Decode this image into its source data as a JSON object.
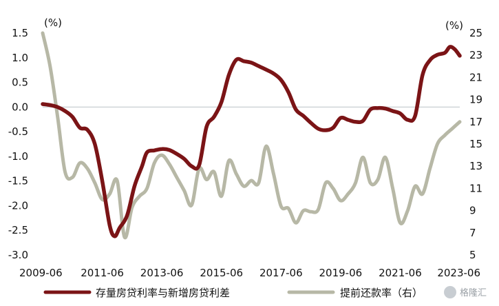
{
  "chart_data": {
    "type": "line",
    "title": "",
    "x_tick_labels": [
      "2009-06",
      "2011-06",
      "2013-06",
      "2015-06",
      "2017-06",
      "2019-06",
      "2021-06",
      "2023-06"
    ],
    "x_range": [
      "2009-06",
      "2023-06"
    ],
    "y_left": {
      "unit_label": "(%)",
      "range": [
        -3.0,
        1.5
      ],
      "tick_labels": [
        "1.5",
        "1.0",
        "0.5",
        "0.0",
        "-0.5",
        "-1.0",
        "-1.5",
        "-2.0",
        "-2.5",
        "-3.0"
      ],
      "ticks": [
        1.5,
        1.0,
        0.5,
        0.0,
        -0.5,
        -1.0,
        -1.5,
        -2.0,
        -2.5,
        -3.0
      ]
    },
    "y_right": {
      "unit_label": "(%)",
      "range": [
        5,
        25
      ],
      "tick_labels": [
        "25",
        "23",
        "21",
        "19",
        "17",
        "15",
        "13",
        "11",
        "9",
        "7",
        "5"
      ],
      "ticks": [
        25,
        23,
        21,
        19,
        17,
        15,
        13,
        11,
        9,
        7,
        5
      ]
    },
    "zero_line": true,
    "grid": false,
    "legend_position": "bottom",
    "series": [
      {
        "name": "存量房贷利率与新增房贷利差",
        "axis": "left",
        "color": "#7b1416",
        "points": [
          [
            "2009-06",
            0.06
          ],
          [
            "2009-09",
            0.04
          ],
          [
            "2009-12",
            0.0
          ],
          [
            "2010-03",
            -0.08
          ],
          [
            "2010-06",
            -0.2
          ],
          [
            "2010-09",
            -0.42
          ],
          [
            "2010-12",
            -0.46
          ],
          [
            "2011-03",
            -0.75
          ],
          [
            "2011-06",
            -1.5
          ],
          [
            "2011-09",
            -2.4
          ],
          [
            "2011-11",
            -2.62
          ],
          [
            "2012-01",
            -2.45
          ],
          [
            "2012-04",
            -2.2
          ],
          [
            "2012-07",
            -1.6
          ],
          [
            "2012-10",
            -1.2
          ],
          [
            "2012-12",
            -0.92
          ],
          [
            "2013-03",
            -0.88
          ],
          [
            "2013-06",
            -0.85
          ],
          [
            "2013-09",
            -0.87
          ],
          [
            "2013-12",
            -0.95
          ],
          [
            "2014-03",
            -1.05
          ],
          [
            "2014-06",
            -1.2
          ],
          [
            "2014-09",
            -1.18
          ],
          [
            "2014-12",
            -0.4
          ],
          [
            "2015-03",
            -0.2
          ],
          [
            "2015-06",
            0.1
          ],
          [
            "2015-09",
            0.65
          ],
          [
            "2015-12",
            0.96
          ],
          [
            "2016-03",
            0.93
          ],
          [
            "2016-06",
            0.9
          ],
          [
            "2016-09",
            0.83
          ],
          [
            "2016-12",
            0.76
          ],
          [
            "2017-03",
            0.68
          ],
          [
            "2017-06",
            0.55
          ],
          [
            "2017-09",
            0.3
          ],
          [
            "2017-12",
            -0.05
          ],
          [
            "2018-03",
            -0.18
          ],
          [
            "2018-06",
            -0.32
          ],
          [
            "2018-09",
            -0.44
          ],
          [
            "2018-12",
            -0.47
          ],
          [
            "2019-03",
            -0.42
          ],
          [
            "2019-06",
            -0.22
          ],
          [
            "2019-09",
            -0.26
          ],
          [
            "2019-12",
            -0.3
          ],
          [
            "2020-03",
            -0.28
          ],
          [
            "2020-06",
            -0.05
          ],
          [
            "2020-09",
            -0.02
          ],
          [
            "2020-12",
            -0.03
          ],
          [
            "2021-03",
            -0.08
          ],
          [
            "2021-06",
            -0.13
          ],
          [
            "2021-09",
            -0.26
          ],
          [
            "2021-12",
            -0.18
          ],
          [
            "2022-03",
            0.65
          ],
          [
            "2022-06",
            0.95
          ],
          [
            "2022-09",
            1.06
          ],
          [
            "2022-12",
            1.1
          ],
          [
            "2023-02",
            1.22
          ],
          [
            "2023-04",
            1.17
          ],
          [
            "2023-06",
            1.04
          ]
        ]
      },
      {
        "name": "提前还款率（右）",
        "axis": "right",
        "color": "#b7b8a6",
        "points": [
          [
            "2009-06",
            25.0
          ],
          [
            "2009-09",
            22.0
          ],
          [
            "2009-12",
            17.5
          ],
          [
            "2010-03",
            12.5
          ],
          [
            "2010-06",
            12.0
          ],
          [
            "2010-09",
            13.3
          ],
          [
            "2010-12",
            12.8
          ],
          [
            "2011-03",
            11.5
          ],
          [
            "2011-06",
            10.0
          ],
          [
            "2011-09",
            10.5
          ],
          [
            "2011-12",
            11.7
          ],
          [
            "2012-03",
            6.6
          ],
          [
            "2012-06",
            9.3
          ],
          [
            "2012-09",
            10.3
          ],
          [
            "2012-12",
            11.0
          ],
          [
            "2013-03",
            13.3
          ],
          [
            "2013-06",
            14.0
          ],
          [
            "2013-09",
            13.2
          ],
          [
            "2013-12",
            12.0
          ],
          [
            "2014-03",
            10.8
          ],
          [
            "2014-06",
            9.5
          ],
          [
            "2014-09",
            12.8
          ],
          [
            "2014-12",
            11.8
          ],
          [
            "2015-03",
            12.5
          ],
          [
            "2015-06",
            10.3
          ],
          [
            "2015-09",
            13.5
          ],
          [
            "2015-12",
            12.3
          ],
          [
            "2016-03",
            11.2
          ],
          [
            "2016-06",
            11.7
          ],
          [
            "2016-09",
            11.5
          ],
          [
            "2016-12",
            14.8
          ],
          [
            "2017-03",
            12.3
          ],
          [
            "2017-06",
            9.4
          ],
          [
            "2017-09",
            9.2
          ],
          [
            "2017-12",
            7.9
          ],
          [
            "2018-03",
            9.0
          ],
          [
            "2018-06",
            8.9
          ],
          [
            "2018-09",
            9.1
          ],
          [
            "2018-12",
            11.5
          ],
          [
            "2019-03",
            11.0
          ],
          [
            "2019-06",
            9.9
          ],
          [
            "2019-09",
            10.5
          ],
          [
            "2019-12",
            11.5
          ],
          [
            "2020-03",
            13.8
          ],
          [
            "2020-06",
            11.5
          ],
          [
            "2020-09",
            11.8
          ],
          [
            "2020-12",
            13.8
          ],
          [
            "2021-03",
            11.0
          ],
          [
            "2021-06",
            7.9
          ],
          [
            "2021-09",
            9.0
          ],
          [
            "2021-12",
            11.2
          ],
          [
            "2022-03",
            10.5
          ],
          [
            "2022-06",
            12.8
          ],
          [
            "2022-09",
            15.0
          ],
          [
            "2022-12",
            15.8
          ],
          [
            "2023-03",
            16.4
          ],
          [
            "2023-06",
            17.0
          ]
        ]
      }
    ]
  },
  "watermark": "格隆汇",
  "colors": {
    "zero_line": "#cfd4d8",
    "axis_text": "#111111",
    "watermark_badge": "#c8cdd2"
  }
}
